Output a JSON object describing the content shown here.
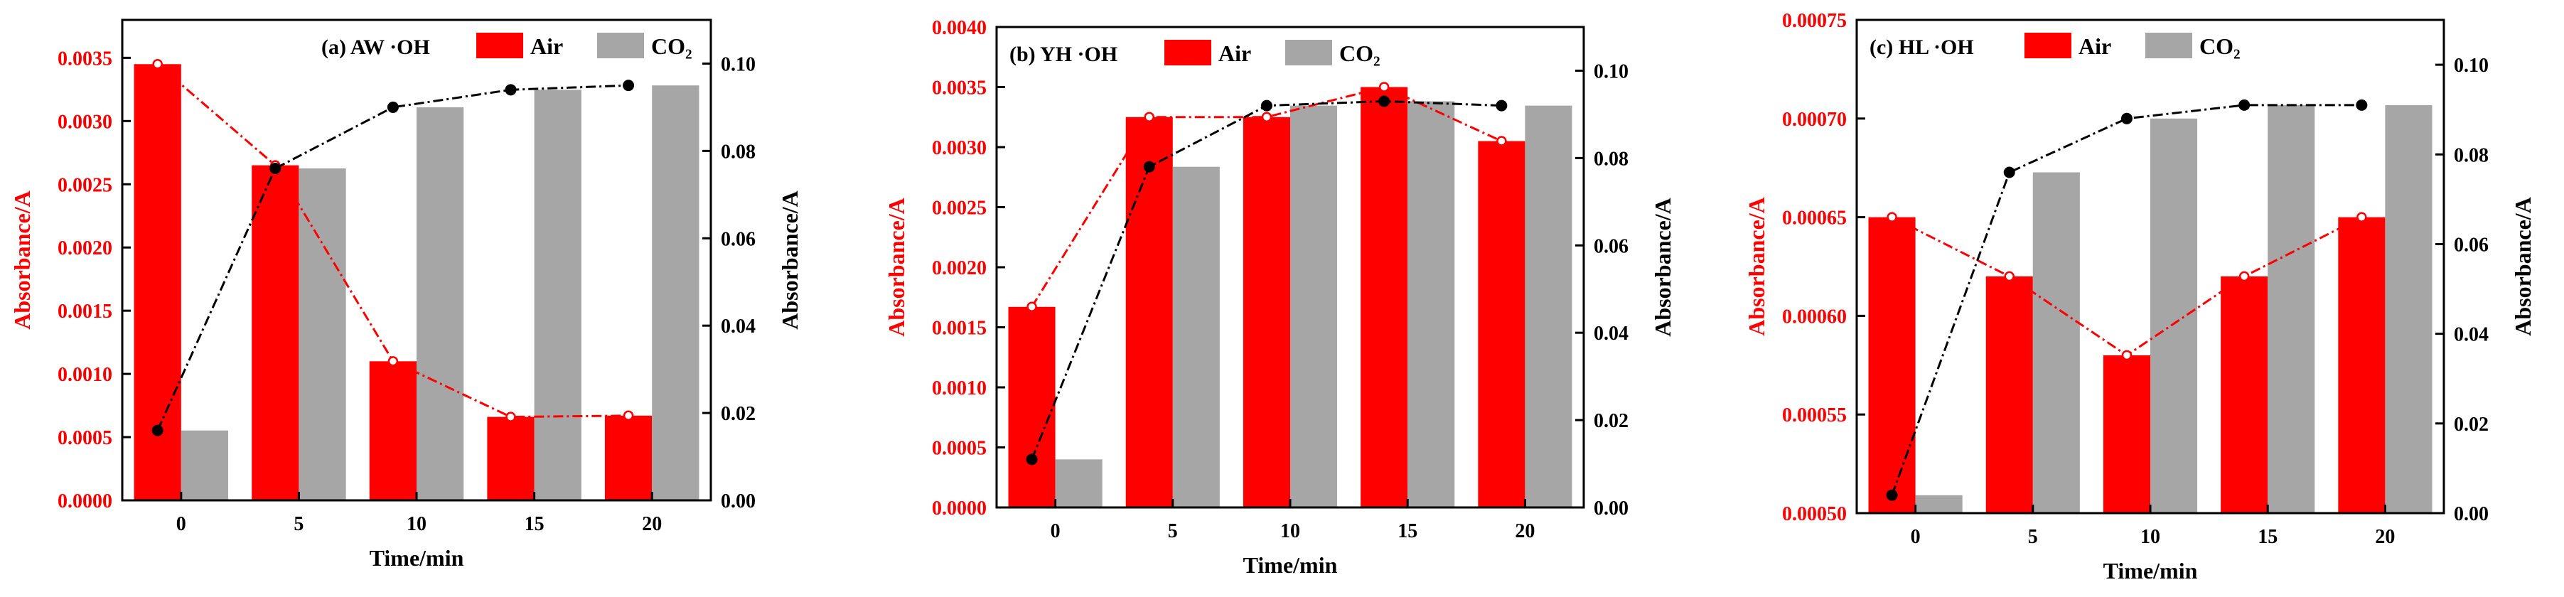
{
  "figure": {
    "primary_color": "#ff0000",
    "secondary_color": "#a6a6a6",
    "line_secondary_color": "#000000"
  },
  "chart_data": [
    {
      "type": "bar",
      "title": "(a) AW ·OH",
      "xlabel": "Time/min",
      "ylabel_left": "Absorbance/A",
      "ylabel_right": "Absorbance/A",
      "categories": [
        "0",
        "5",
        "10",
        "15",
        "20"
      ],
      "ylim_left": [
        0,
        0.0038
      ],
      "yticks_left": [
        0.0,
        0.0005,
        0.001,
        0.0015,
        0.002,
        0.0025,
        0.003,
        0.0035
      ],
      "ytick_labels_left": [
        "0.0000",
        "0.0005",
        "0.0010",
        "0.0015",
        "0.0020",
        "0.0025",
        "0.0030",
        "0.0035"
      ],
      "ylim_right": [
        0,
        0.11
      ],
      "yticks_right": [
        0,
        0.02,
        0.04,
        0.06,
        0.08,
        0.1
      ],
      "ytick_labels_right": [
        "0.00",
        "0.02",
        "0.04",
        "0.06",
        "0.08",
        "0.10"
      ],
      "legend": [
        "Air",
        "CO₂"
      ],
      "series": [
        {
          "name": "Air",
          "axis": "left",
          "values": [
            0.00345,
            0.00265,
            0.0011,
            0.00066,
            0.00067
          ]
        },
        {
          "name": "CO₂",
          "axis": "right",
          "values": [
            0.016,
            0.076,
            0.09,
            0.094,
            0.095
          ]
        }
      ]
    },
    {
      "type": "bar",
      "title": "(b) YH ·OH",
      "xlabel": "Time/min",
      "ylabel_left": "Absorbance/A",
      "ylabel_right": "Absorbance/A",
      "categories": [
        "0",
        "5",
        "10",
        "15",
        "20"
      ],
      "ylim_left": [
        0,
        0.004
      ],
      "yticks_left": [
        0.0,
        0.0005,
        0.001,
        0.0015,
        0.002,
        0.0025,
        0.003,
        0.0035,
        0.004
      ],
      "ytick_labels_left": [
        "0.0000",
        "0.0005",
        "0.0010",
        "0.0015",
        "0.0020",
        "0.0025",
        "0.0030",
        "0.0035",
        "0.0040"
      ],
      "ylim_right": [
        0,
        0.11
      ],
      "yticks_right": [
        0,
        0.02,
        0.04,
        0.06,
        0.08,
        0.1
      ],
      "ytick_labels_right": [
        "0.00",
        "0.02",
        "0.04",
        "0.06",
        "0.08",
        "0.10"
      ],
      "legend": [
        "Air",
        "CO₂"
      ],
      "series": [
        {
          "name": "Air",
          "axis": "left",
          "values": [
            0.00167,
            0.00325,
            0.00325,
            0.0035,
            0.00305
          ]
        },
        {
          "name": "CO₂",
          "axis": "right",
          "values": [
            0.011,
            0.078,
            0.092,
            0.093,
            0.092
          ]
        }
      ]
    },
    {
      "type": "bar",
      "title": "(c) HL ·OH",
      "xlabel": "Time/min",
      "ylabel_left": "Absorbance/A",
      "ylabel_right": "Absorbance/A",
      "categories": [
        "0",
        "5",
        "10",
        "15",
        "20"
      ],
      "ylim_left": [
        0.0005,
        0.00075
      ],
      "yticks_left": [
        0.0005,
        0.00055,
        0.0006,
        0.00065,
        0.0007,
        0.00075
      ],
      "ytick_labels_left": [
        "0.00050",
        "0.00055",
        "0.00060",
        "0.00065",
        "0.00070",
        "0.00075"
      ],
      "ylim_right": [
        0,
        0.11
      ],
      "yticks_right": [
        0,
        0.02,
        0.04,
        0.06,
        0.08,
        0.1
      ],
      "ytick_labels_right": [
        "0.00",
        "0.02",
        "0.04",
        "0.06",
        "0.08",
        "0.10"
      ],
      "legend": [
        "Air",
        "CO₂"
      ],
      "series": [
        {
          "name": "Air",
          "axis": "left",
          "values": [
            0.00065,
            0.00062,
            0.00058,
            0.00062,
            0.00065
          ]
        },
        {
          "name": "CO₂",
          "axis": "right",
          "values": [
            0.004,
            0.076,
            0.088,
            0.091,
            0.091
          ]
        }
      ]
    }
  ]
}
